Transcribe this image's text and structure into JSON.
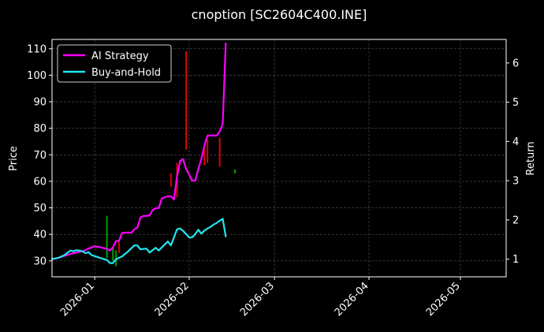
{
  "chart_data": {
    "type": "line",
    "title": "cnoption [SC2604C400.INE]",
    "ylabel": "Price",
    "y2label": "Return",
    "grid": true,
    "legend_position": "top-left",
    "background": "#000000",
    "x_ticks": [
      "2026-01",
      "2026-02",
      "2026-03",
      "2026-04",
      "2026-05"
    ],
    "xlim": [
      "2025-12-18",
      "2026-05-16"
    ],
    "y_ticks": [
      30,
      40,
      50,
      60,
      70,
      80,
      90,
      100,
      110
    ],
    "ylim": [
      24,
      113.5
    ],
    "y2_ticks": [
      1,
      2,
      3,
      4,
      5,
      6
    ],
    "y2lim": [
      0.55,
      6.6
    ],
    "series": [
      {
        "name": "AI Strategy",
        "axis": "right",
        "color": "#ff00ff",
        "points": [
          [
            "2025-12-18",
            1.0
          ],
          [
            "2025-12-20",
            1.03
          ],
          [
            "2025-12-22",
            1.08
          ],
          [
            "2025-12-24",
            1.13
          ],
          [
            "2025-12-26",
            1.17
          ],
          [
            "2025-12-28",
            1.2
          ],
          [
            "2025-12-30",
            1.27
          ],
          [
            "2026-01-01",
            1.33
          ],
          [
            "2026-01-03",
            1.3
          ],
          [
            "2026-01-05",
            1.26
          ],
          [
            "2026-01-06",
            1.22
          ],
          [
            "2026-01-07",
            1.3
          ],
          [
            "2026-01-08",
            1.46
          ],
          [
            "2026-01-09",
            1.47
          ],
          [
            "2026-01-10",
            1.67
          ],
          [
            "2026-01-12",
            1.68
          ],
          [
            "2026-01-13",
            1.67
          ],
          [
            "2026-01-14",
            1.76
          ],
          [
            "2026-01-15",
            1.8
          ],
          [
            "2026-01-16",
            2.06
          ],
          [
            "2026-01-17",
            2.1
          ],
          [
            "2026-01-19",
            2.11
          ],
          [
            "2026-01-20",
            2.25
          ],
          [
            "2026-01-21",
            2.3
          ],
          [
            "2026-01-22",
            2.3
          ],
          [
            "2026-01-23",
            2.55
          ],
          [
            "2026-01-25",
            2.6
          ],
          [
            "2026-01-26",
            2.6
          ],
          [
            "2026-01-27",
            2.52
          ],
          [
            "2026-01-28",
            3.1
          ],
          [
            "2026-01-29",
            3.5
          ],
          [
            "2026-01-30",
            3.55
          ],
          [
            "2026-01-31",
            3.3
          ],
          [
            "2026-02-01",
            3.15
          ],
          [
            "2026-02-02",
            3.0
          ],
          [
            "2026-02-03",
            3.0
          ],
          [
            "2026-02-04",
            3.3
          ],
          [
            "2026-02-05",
            3.55
          ],
          [
            "2026-02-06",
            3.9
          ],
          [
            "2026-02-07",
            4.15
          ],
          [
            "2026-02-09",
            4.15
          ],
          [
            "2026-02-10",
            4.15
          ],
          [
            "2026-02-11",
            4.25
          ],
          [
            "2026-02-12",
            4.45
          ],
          [
            "2026-02-13",
            6.5
          ]
        ]
      },
      {
        "name": "Buy-and-Hold",
        "axis": "right",
        "color": "#22e5ee",
        "points": [
          [
            "2025-12-18",
            1.0
          ],
          [
            "2025-12-20",
            1.03
          ],
          [
            "2025-12-22",
            1.1
          ],
          [
            "2025-12-24",
            1.22
          ],
          [
            "2025-12-25",
            1.2
          ],
          [
            "2025-12-26",
            1.23
          ],
          [
            "2025-12-28",
            1.2
          ],
          [
            "2025-12-29",
            1.15
          ],
          [
            "2025-12-30",
            1.18
          ],
          [
            "2025-12-31",
            1.1
          ],
          [
            "2026-01-02",
            1.05
          ],
          [
            "2026-01-04",
            1.0
          ],
          [
            "2026-01-05",
            0.98
          ],
          [
            "2026-01-06",
            0.9
          ],
          [
            "2026-01-07",
            0.9
          ],
          [
            "2026-01-08",
            1.0
          ],
          [
            "2026-01-10",
            1.07
          ],
          [
            "2026-01-12",
            1.2
          ],
          [
            "2026-01-14",
            1.35
          ],
          [
            "2026-01-15",
            1.35
          ],
          [
            "2026-01-16",
            1.25
          ],
          [
            "2026-01-18",
            1.27
          ],
          [
            "2026-01-19",
            1.17
          ],
          [
            "2026-01-21",
            1.29
          ],
          [
            "2026-01-22",
            1.22
          ],
          [
            "2026-01-23",
            1.3
          ],
          [
            "2026-01-25",
            1.45
          ],
          [
            "2026-01-26",
            1.35
          ],
          [
            "2026-01-27",
            1.55
          ],
          [
            "2026-01-28",
            1.76
          ],
          [
            "2026-01-29",
            1.78
          ],
          [
            "2026-01-30",
            1.72
          ],
          [
            "2026-01-31",
            1.64
          ],
          [
            "2026-02-01",
            1.55
          ],
          [
            "2026-02-02",
            1.56
          ],
          [
            "2026-02-03",
            1.64
          ],
          [
            "2026-02-04",
            1.75
          ],
          [
            "2026-02-05",
            1.65
          ],
          [
            "2026-02-06",
            1.73
          ],
          [
            "2026-02-07",
            1.78
          ],
          [
            "2026-02-08",
            1.82
          ],
          [
            "2026-02-09",
            1.88
          ],
          [
            "2026-02-10",
            1.92
          ],
          [
            "2026-02-11",
            1.98
          ],
          [
            "2026-02-12",
            2.03
          ],
          [
            "2026-02-13",
            1.58
          ]
        ]
      }
    ],
    "candles": [
      {
        "date": "2026-01-05",
        "low": 31,
        "high": 47,
        "color": "#00a000"
      },
      {
        "date": "2026-01-07",
        "low": 30,
        "high": 35,
        "color": "#00a000"
      },
      {
        "date": "2026-01-08",
        "low": 28,
        "high": 34,
        "color": "#00a000"
      },
      {
        "date": "2026-01-09",
        "low": 33,
        "high": 38,
        "color": "#e00000"
      },
      {
        "date": "2026-01-26",
        "low": 58,
        "high": 63,
        "color": "#e00000"
      },
      {
        "date": "2026-01-28",
        "low": 54,
        "high": 67,
        "color": "#e00000"
      },
      {
        "date": "2026-01-31",
        "low": 72,
        "high": 109,
        "color": "#e00000"
      },
      {
        "date": "2026-02-06",
        "low": 66,
        "high": 72,
        "color": "#e00000"
      },
      {
        "date": "2026-02-07",
        "low": 67,
        "high": 76,
        "color": "#e00000"
      },
      {
        "date": "2026-02-11",
        "low": 65.5,
        "high": 76.5,
        "color": "#e00000"
      },
      {
        "date": "2026-02-16",
        "low": 63,
        "high": 64.5,
        "color": "#00a000"
      }
    ]
  }
}
